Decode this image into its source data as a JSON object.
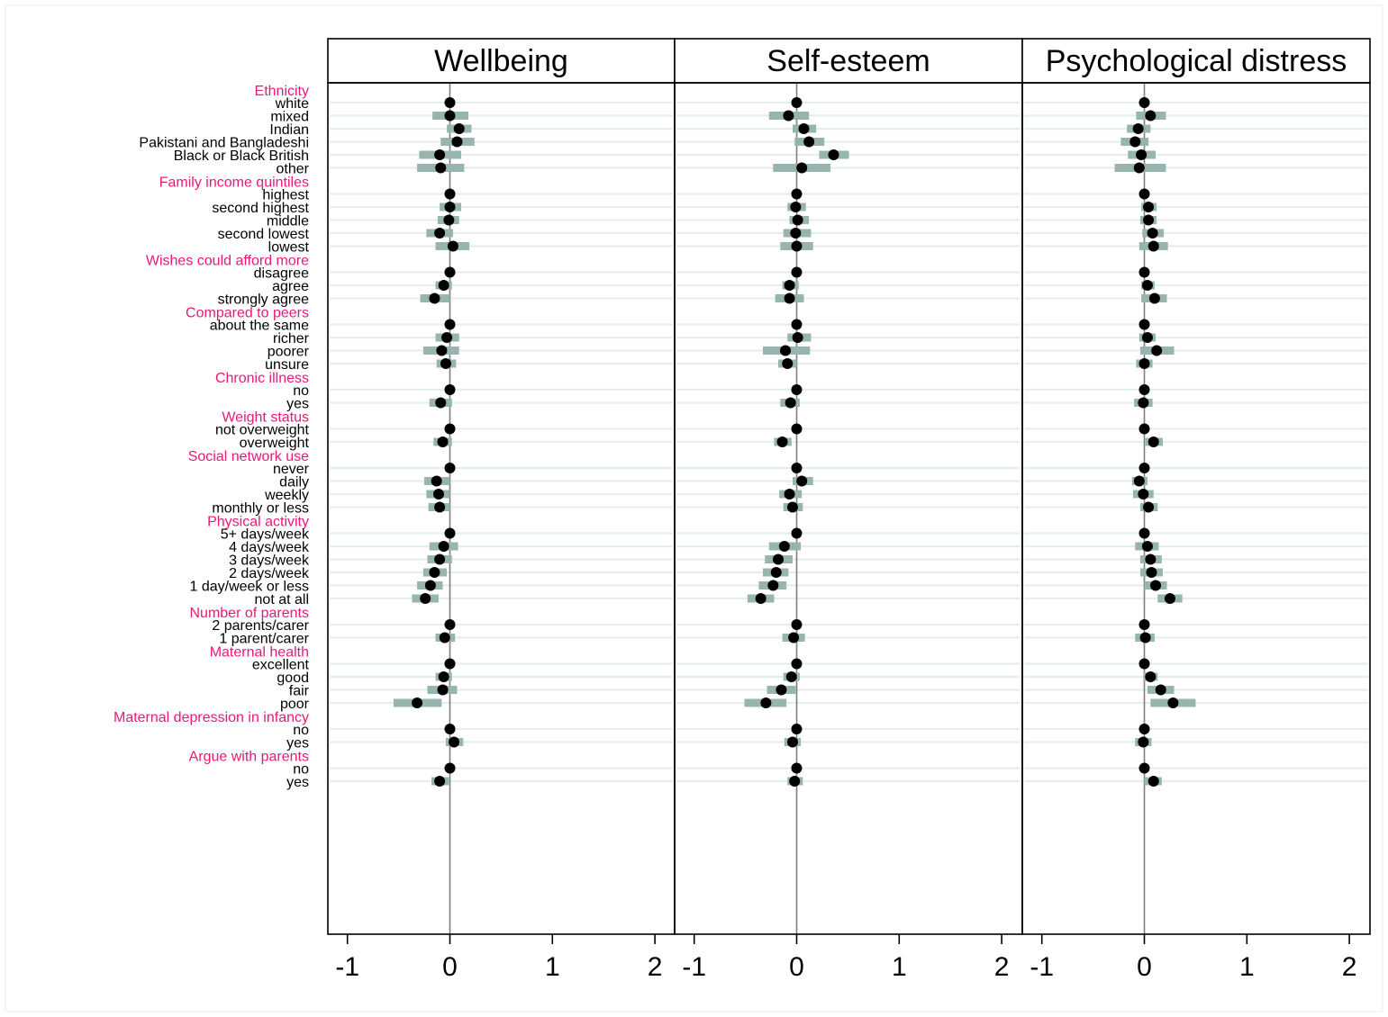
{
  "chart_data": {
    "type": "scatter",
    "panels": [
      "Wellbeing",
      "Self-esteem",
      "Psychological distress"
    ],
    "xticks": [
      -1,
      0,
      1,
      2
    ],
    "xlim": [
      -1.2,
      2.2
    ],
    "grid": true,
    "colors": {
      "point": "#000000",
      "ci": "#97b5ae",
      "grid": "#e5eeed",
      "group_label": "#e8197a",
      "zero_line": "#7f7f7f"
    },
    "groups": [
      {
        "name": "Ethnicity",
        "rows": [
          {
            "label": "white",
            "est": [
              0.0,
              0.0,
              0.0
            ],
            "lo": [
              0.0,
              0.0,
              0.0
            ],
            "hi": [
              0.0,
              0.0,
              0.0
            ]
          },
          {
            "label": "mixed",
            "est": [
              0.0,
              -0.08,
              0.06
            ],
            "lo": [
              -0.17,
              -0.27,
              -0.08
            ],
            "hi": [
              0.18,
              0.12,
              0.21
            ]
          },
          {
            "label": "Indian",
            "est": [
              0.09,
              0.07,
              -0.06
            ],
            "lo": [
              -0.03,
              -0.04,
              -0.17
            ],
            "hi": [
              0.21,
              0.19,
              0.06
            ]
          },
          {
            "label": "Pakistani and Bangladeshi",
            "est": [
              0.07,
              0.12,
              -0.09
            ],
            "lo": [
              -0.09,
              -0.02,
              -0.23
            ],
            "hi": [
              0.24,
              0.27,
              0.04
            ]
          },
          {
            "label": "Black or Black British",
            "est": [
              -0.1,
              0.36,
              -0.03
            ],
            "lo": [
              -0.3,
              0.22,
              -0.16
            ],
            "hi": [
              0.11,
              0.51,
              0.11
            ]
          },
          {
            "label": "other",
            "est": [
              -0.09,
              0.05,
              -0.05
            ],
            "lo": [
              -0.32,
              -0.23,
              -0.29
            ],
            "hi": [
              0.14,
              0.33,
              0.21
            ]
          }
        ]
      },
      {
        "name": "Family income quintiles",
        "rows": [
          {
            "label": "highest",
            "est": [
              0.0,
              0.0,
              0.0
            ],
            "lo": [
              0.0,
              0.0,
              0.0
            ],
            "hi": [
              0.0,
              0.0,
              0.0
            ]
          },
          {
            "label": "second highest",
            "est": [
              0.0,
              -0.01,
              0.04
            ],
            "lo": [
              -0.1,
              -0.09,
              -0.03
            ],
            "hi": [
              0.11,
              0.09,
              0.12
            ]
          },
          {
            "label": "middle",
            "est": [
              -0.01,
              0.01,
              0.04
            ],
            "lo": [
              -0.12,
              -0.07,
              -0.04
            ],
            "hi": [
              0.09,
              0.12,
              0.12
            ]
          },
          {
            "label": "second lowest",
            "est": [
              -0.1,
              -0.01,
              0.08
            ],
            "lo": [
              -0.23,
              -0.13,
              -0.02
            ],
            "hi": [
              0.03,
              0.14,
              0.19
            ]
          },
          {
            "label": "lowest",
            "est": [
              0.03,
              0.0,
              0.09
            ],
            "lo": [
              -0.14,
              -0.16,
              -0.05
            ],
            "hi": [
              0.19,
              0.16,
              0.23
            ]
          }
        ]
      },
      {
        "name": "Wishes could afford more",
        "rows": [
          {
            "label": "disagree",
            "est": [
              0.0,
              0.0,
              0.0
            ],
            "lo": [
              0.0,
              0.0,
              0.0
            ],
            "hi": [
              0.0,
              0.0,
              0.0
            ]
          },
          {
            "label": "agree",
            "est": [
              -0.06,
              -0.07,
              0.03
            ],
            "lo": [
              -0.14,
              -0.14,
              -0.03
            ],
            "hi": [
              0.02,
              0.02,
              0.1
            ]
          },
          {
            "label": "strongly agree",
            "est": [
              -0.15,
              -0.07,
              0.1
            ],
            "lo": [
              -0.29,
              -0.21,
              -0.03
            ],
            "hi": [
              0.0,
              0.07,
              0.22
            ]
          }
        ]
      },
      {
        "name": "Compared to peers",
        "rows": [
          {
            "label": "about the same",
            "est": [
              0.0,
              0.0,
              0.0
            ],
            "lo": [
              0.0,
              0.0,
              0.0
            ],
            "hi": [
              0.0,
              0.0,
              0.0
            ]
          },
          {
            "label": "richer",
            "est": [
              -0.03,
              0.01,
              0.03
            ],
            "lo": [
              -0.14,
              -0.09,
              -0.05
            ],
            "hi": [
              0.09,
              0.14,
              0.11
            ]
          },
          {
            "label": "poorer",
            "est": [
              -0.08,
              -0.11,
              0.12
            ],
            "lo": [
              -0.26,
              -0.33,
              -0.04
            ],
            "hi": [
              0.09,
              0.13,
              0.29
            ]
          },
          {
            "label": "unsure",
            "est": [
              -0.04,
              -0.09,
              0.0
            ],
            "lo": [
              -0.13,
              -0.18,
              -0.08
            ],
            "hi": [
              0.06,
              0.0,
              0.08
            ]
          }
        ]
      },
      {
        "name": "Chronic illness",
        "rows": [
          {
            "label": "no",
            "est": [
              0.0,
              0.0,
              0.0
            ],
            "lo": [
              0.0,
              0.0,
              0.0
            ],
            "hi": [
              0.0,
              0.0,
              0.0
            ]
          },
          {
            "label": "yes",
            "est": [
              -0.09,
              -0.06,
              -0.01
            ],
            "lo": [
              -0.2,
              -0.16,
              -0.1
            ],
            "hi": [
              0.02,
              0.03,
              0.08
            ]
          }
        ]
      },
      {
        "name": "Weight status",
        "rows": [
          {
            "label": "not overweight",
            "est": [
              0.0,
              0.0,
              0.0
            ],
            "lo": [
              0.0,
              0.0,
              0.0
            ],
            "hi": [
              0.0,
              0.0,
              0.0
            ]
          },
          {
            "label": "overweight",
            "est": [
              -0.07,
              -0.14,
              0.09
            ],
            "lo": [
              -0.16,
              -0.22,
              0.01
            ],
            "hi": [
              0.02,
              -0.05,
              0.18
            ]
          }
        ]
      },
      {
        "name": "Social network use",
        "rows": [
          {
            "label": "never",
            "est": [
              0.0,
              0.0,
              0.0
            ],
            "lo": [
              0.0,
              0.0,
              0.0
            ],
            "hi": [
              0.0,
              0.0,
              0.0
            ]
          },
          {
            "label": "daily",
            "est": [
              -0.13,
              0.05,
              -0.05
            ],
            "lo": [
              -0.25,
              -0.04,
              -0.12
            ],
            "hi": [
              0.0,
              0.16,
              0.03
            ]
          },
          {
            "label": "weekly",
            "est": [
              -0.11,
              -0.07,
              -0.01
            ],
            "lo": [
              -0.23,
              -0.17,
              -0.11
            ],
            "hi": [
              0.0,
              0.05,
              0.09
            ]
          },
          {
            "label": "monthly or less",
            "est": [
              -0.1,
              -0.04,
              0.04
            ],
            "lo": [
              -0.21,
              -0.13,
              -0.04
            ],
            "hi": [
              0.0,
              0.06,
              0.13
            ]
          }
        ]
      },
      {
        "name": "Physical activity",
        "rows": [
          {
            "label": "5+ days/week",
            "est": [
              0.0,
              0.0,
              0.0
            ],
            "lo": [
              0.0,
              0.0,
              0.0
            ],
            "hi": [
              0.0,
              0.0,
              0.0
            ]
          },
          {
            "label": "4 days/week",
            "est": [
              -0.06,
              -0.12,
              0.03
            ],
            "lo": [
              -0.2,
              -0.27,
              -0.09
            ],
            "hi": [
              0.08,
              0.04,
              0.14
            ]
          },
          {
            "label": "3 days/week",
            "est": [
              -0.1,
              -0.18,
              0.06
            ],
            "lo": [
              -0.22,
              -0.31,
              -0.04
            ],
            "hi": [
              0.02,
              -0.04,
              0.17
            ]
          },
          {
            "label": "2 days/week",
            "est": [
              -0.15,
              -0.2,
              0.07
            ],
            "lo": [
              -0.26,
              -0.33,
              -0.04
            ],
            "hi": [
              -0.03,
              -0.08,
              0.18
            ]
          },
          {
            "label": "1 day/week or less",
            "est": [
              -0.19,
              -0.23,
              0.11
            ],
            "lo": [
              -0.32,
              -0.37,
              0.0
            ],
            "hi": [
              -0.07,
              -0.1,
              0.22
            ]
          },
          {
            "label": "not at all",
            "est": [
              -0.24,
              -0.35,
              0.25
            ],
            "lo": [
              -0.37,
              -0.48,
              0.13
            ],
            "hi": [
              -0.11,
              -0.22,
              0.37
            ]
          }
        ]
      },
      {
        "name": "Number of parents",
        "rows": [
          {
            "label": "2 parents/carer",
            "est": [
              0.0,
              0.0,
              0.0
            ],
            "lo": [
              0.0,
              0.0,
              0.0
            ],
            "hi": [
              0.0,
              0.0,
              0.0
            ]
          },
          {
            "label": "1 parent/carer",
            "est": [
              -0.05,
              -0.03,
              0.01
            ],
            "lo": [
              -0.14,
              -0.14,
              -0.09
            ],
            "hi": [
              0.05,
              0.08,
              0.1
            ]
          }
        ]
      },
      {
        "name": "Maternal health",
        "rows": [
          {
            "label": "excellent",
            "est": [
              0.0,
              0.0,
              0.0
            ],
            "lo": [
              0.0,
              0.0,
              0.0
            ],
            "hi": [
              0.0,
              0.0,
              0.0
            ]
          },
          {
            "label": "good",
            "est": [
              -0.06,
              -0.05,
              0.06
            ],
            "lo": [
              -0.14,
              -0.13,
              -0.01
            ],
            "hi": [
              0.02,
              0.03,
              0.13
            ]
          },
          {
            "label": "fair",
            "est": [
              -0.07,
              -0.15,
              0.16
            ],
            "lo": [
              -0.22,
              -0.29,
              0.03
            ],
            "hi": [
              0.07,
              -0.01,
              0.29
            ]
          },
          {
            "label": "poor",
            "est": [
              -0.32,
              -0.3,
              0.28
            ],
            "lo": [
              -0.55,
              -0.51,
              0.06
            ],
            "hi": [
              -0.08,
              -0.1,
              0.5
            ]
          }
        ]
      },
      {
        "name": "Maternal depression in infancy",
        "rows": [
          {
            "label": "no",
            "est": [
              0.0,
              0.0,
              0.0
            ],
            "lo": [
              0.0,
              0.0,
              0.0
            ],
            "hi": [
              0.0,
              0.0,
              0.0
            ]
          },
          {
            "label": "yes",
            "est": [
              0.04,
              -0.04,
              -0.01
            ],
            "lo": [
              -0.04,
              -0.12,
              -0.09
            ],
            "hi": [
              0.13,
              0.04,
              0.07
            ]
          }
        ]
      },
      {
        "name": "Argue with parents",
        "rows": [
          {
            "label": "no",
            "est": [
              0.0,
              0.0,
              0.0
            ],
            "lo": [
              0.0,
              0.0,
              0.0
            ],
            "hi": [
              0.0,
              0.0,
              0.0
            ]
          },
          {
            "label": "yes",
            "est": [
              -0.1,
              -0.02,
              0.09
            ],
            "lo": [
              -0.18,
              -0.09,
              0.0
            ],
            "hi": [
              -0.01,
              0.06,
              0.17
            ]
          }
        ]
      }
    ]
  }
}
